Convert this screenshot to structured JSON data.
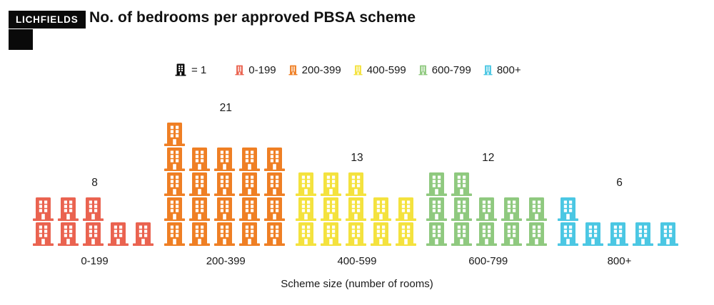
{
  "header": {
    "logo_text": "LICHFIELDS",
    "title": "No. of bedrooms per approved PBSA scheme"
  },
  "legend": {
    "key_label": "= 1",
    "key_color": "#0a0a0a",
    "items": [
      {
        "label": "0-199",
        "color": "#EA6350"
      },
      {
        "label": "200-399",
        "color": "#EF7F24"
      },
      {
        "label": "400-599",
        "color": "#F4E23E"
      },
      {
        "label": "600-799",
        "color": "#8FC97F"
      },
      {
        "label": "800+",
        "color": "#4BC7E3"
      }
    ]
  },
  "chart_data": {
    "type": "pictogram",
    "icon": "building",
    "unit": 1,
    "per_row": 5,
    "categories": [
      "0-199",
      "200-399",
      "400-599",
      "600-799",
      "800+"
    ],
    "values": [
      8,
      21,
      13,
      12,
      6
    ],
    "colors": [
      "#EA6350",
      "#EF7F24",
      "#F4E23E",
      "#8FC97F",
      "#4BC7E3"
    ],
    "title": "No. of bedrooms per approved PBSA scheme",
    "xlabel": "Scheme size (number of rooms)",
    "ylabel": "",
    "legend_position": "top",
    "value_labels": true,
    "grid": false
  }
}
